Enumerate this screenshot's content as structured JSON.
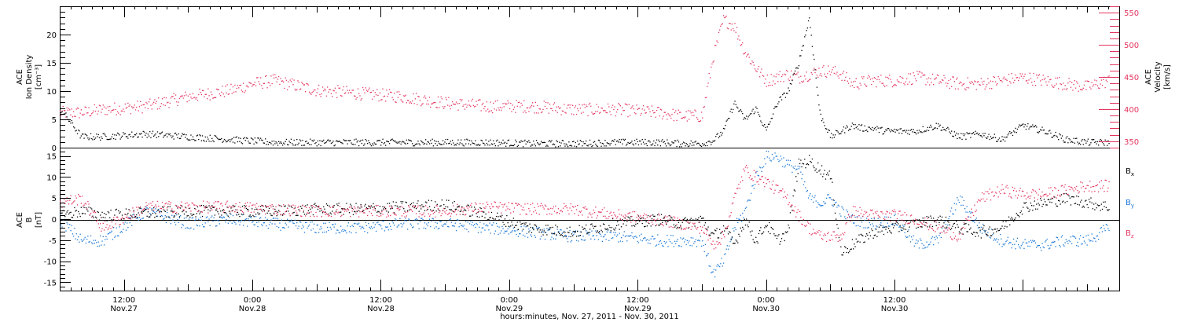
{
  "colors": {
    "black": "#000000",
    "red": "#e3345f",
    "blue": "#1a78d6"
  },
  "chart_data": [
    {
      "type": "scatter",
      "panel": "ion-density-velocity",
      "ylabel_lines": [
        "ACE",
        "Ion Density",
        "[cm⁻³]"
      ],
      "ylim": [
        0,
        25
      ],
      "yticks": [
        0,
        5,
        10,
        15,
        20
      ],
      "y2label_lines": [
        "ACE",
        "Velocity",
        "[km/s]"
      ],
      "y2lim": [
        340,
        560
      ],
      "y2ticks": [
        350,
        400,
        450,
        500,
        550
      ],
      "xlim_hours": [
        6,
        105
      ],
      "series": [
        {
          "axis": "left",
          "color": "#000000",
          "x": [
            6,
            8,
            10,
            14,
            18,
            22,
            26,
            30,
            34,
            38,
            42,
            46,
            50,
            54,
            58,
            62,
            64,
            66,
            67,
            68,
            69,
            70,
            71,
            72,
            73,
            74,
            75,
            76,
            77,
            78,
            79,
            80,
            81,
            82,
            83,
            84,
            86,
            88,
            90,
            92,
            94,
            96,
            98,
            100,
            102,
            104
          ],
          "y": [
            7,
            2,
            2,
            2.5,
            2,
            1.5,
            1,
            1,
            1,
            1,
            1,
            1,
            0.8,
            0.8,
            1,
            1,
            0.8,
            0.8,
            1.3,
            3,
            8,
            5,
            7,
            3,
            8,
            10,
            15,
            23,
            6,
            2,
            3,
            4,
            3.5,
            3.5,
            3,
            3,
            3,
            4,
            2,
            2.5,
            1.5,
            4,
            3,
            1.5,
            1,
            1
          ]
        },
        {
          "axis": "right",
          "color": "#e3345f",
          "x": [
            6,
            8,
            10,
            14,
            18,
            22,
            24,
            26,
            30,
            34,
            38,
            42,
            46,
            50,
            54,
            58,
            62,
            64,
            66,
            67,
            68,
            69,
            70,
            71,
            72,
            73,
            74,
            75,
            76,
            77,
            78,
            79,
            80,
            82,
            84,
            86,
            88,
            90,
            92,
            94,
            96,
            98,
            100,
            102,
            104
          ],
          "y": [
            395,
            395,
            400,
            405,
            420,
            430,
            440,
            445,
            430,
            425,
            420,
            410,
            405,
            405,
            400,
            400,
            395,
            390,
            390,
            480,
            540,
            530,
            490,
            465,
            445,
            450,
            455,
            450,
            455,
            460,
            460,
            455,
            440,
            445,
            445,
            450,
            445,
            440,
            440,
            445,
            450,
            445,
            440,
            435,
            445
          ]
        }
      ]
    },
    {
      "type": "scatter",
      "panel": "magnetic-field",
      "ylabel_lines": [
        "ACE",
        "B",
        "[nT]"
      ],
      "ylim": [
        -17,
        17
      ],
      "yticks": [
        -15,
        -10,
        -5,
        0,
        5,
        10,
        15
      ],
      "xlim_hours": [
        6,
        105
      ],
      "series": [
        {
          "name": "Bx",
          "color": "#000000",
          "x": [
            6,
            8,
            10,
            14,
            18,
            22,
            26,
            30,
            34,
            38,
            42,
            46,
            50,
            54,
            58,
            62,
            64,
            66,
            67,
            68,
            69,
            70,
            71,
            72,
            73,
            74,
            75,
            76,
            77,
            78,
            79,
            80,
            82,
            84,
            86,
            88,
            90,
            92,
            94,
            96,
            98,
            100,
            102,
            104
          ],
          "y": [
            1,
            2,
            1,
            1.5,
            2,
            2,
            2,
            2.5,
            2.5,
            3,
            3.5,
            1,
            -2,
            -3,
            -1,
            0,
            -1,
            0,
            -4,
            -2,
            -6,
            0,
            -5,
            -1,
            -5,
            -3,
            13,
            14,
            12,
            10,
            -8,
            -6,
            -3,
            -2,
            -1,
            0,
            -2,
            -3,
            -2,
            3,
            4,
            5,
            4,
            3
          ]
        },
        {
          "name": "By",
          "color": "#1a78d6",
          "x": [
            6,
            8,
            10,
            14,
            18,
            22,
            26,
            30,
            34,
            38,
            42,
            46,
            50,
            54,
            58,
            62,
            64,
            66,
            67,
            68,
            69,
            70,
            71,
            72,
            73,
            74,
            75,
            76,
            77,
            78,
            79,
            80,
            82,
            84,
            86,
            88,
            90,
            92,
            94,
            96,
            98,
            100,
            102,
            104
          ],
          "y": [
            0,
            -5,
            -5,
            2,
            -1,
            0,
            -1,
            -2,
            -2,
            -1,
            -1,
            -2,
            -3,
            -4,
            -4,
            -5,
            -5,
            -5,
            -13,
            -10,
            -2,
            2,
            10,
            15,
            15,
            13,
            12,
            5,
            4,
            5,
            2,
            0,
            -1,
            0,
            -6,
            -5,
            5,
            -2,
            -5,
            -6,
            -6,
            -5,
            -5,
            -2
          ]
        },
        {
          "name": "Bz",
          "color": "#e3345f",
          "x": [
            6,
            8,
            10,
            14,
            18,
            22,
            26,
            30,
            34,
            38,
            42,
            46,
            50,
            54,
            58,
            62,
            64,
            66,
            67,
            68,
            69,
            70,
            71,
            72,
            73,
            74,
            75,
            76,
            77,
            78,
            79,
            80,
            82,
            84,
            86,
            88,
            90,
            92,
            94,
            96,
            98,
            100,
            102,
            104
          ],
          "y": [
            4,
            5,
            -2,
            3,
            3,
            3,
            2.5,
            2,
            2,
            2,
            2,
            3,
            2.5,
            2.5,
            1,
            0,
            -1,
            -2,
            -6,
            -4,
            5,
            12,
            10,
            9,
            7,
            5,
            1,
            -2,
            -4,
            -4,
            -4,
            2,
            1,
            1,
            0,
            -2,
            -4,
            5,
            7,
            6,
            6,
            7,
            8,
            8
          ]
        }
      ],
      "legend": {
        "placement": "right",
        "labels": [
          "B",
          "B",
          "B"
        ],
        "subscripts": [
          "x",
          "y",
          "z"
        ]
      }
    }
  ],
  "x_axis": {
    "tick_times": [
      "12:00",
      "0:00",
      "12:00",
      "0:00",
      "12:00",
      "0:00",
      "12:00"
    ],
    "tick_dates": [
      "Nov.27",
      "Nov.28",
      "Nov.28",
      "Nov.29",
      "Nov.29",
      "Nov.30",
      "Nov.30"
    ],
    "tick_hours": [
      12,
      24,
      36,
      48,
      60,
      72,
      84,
      96
    ],
    "label": "hours:minutes, Nov. 27, 2011 - Nov. 30, 2011"
  }
}
